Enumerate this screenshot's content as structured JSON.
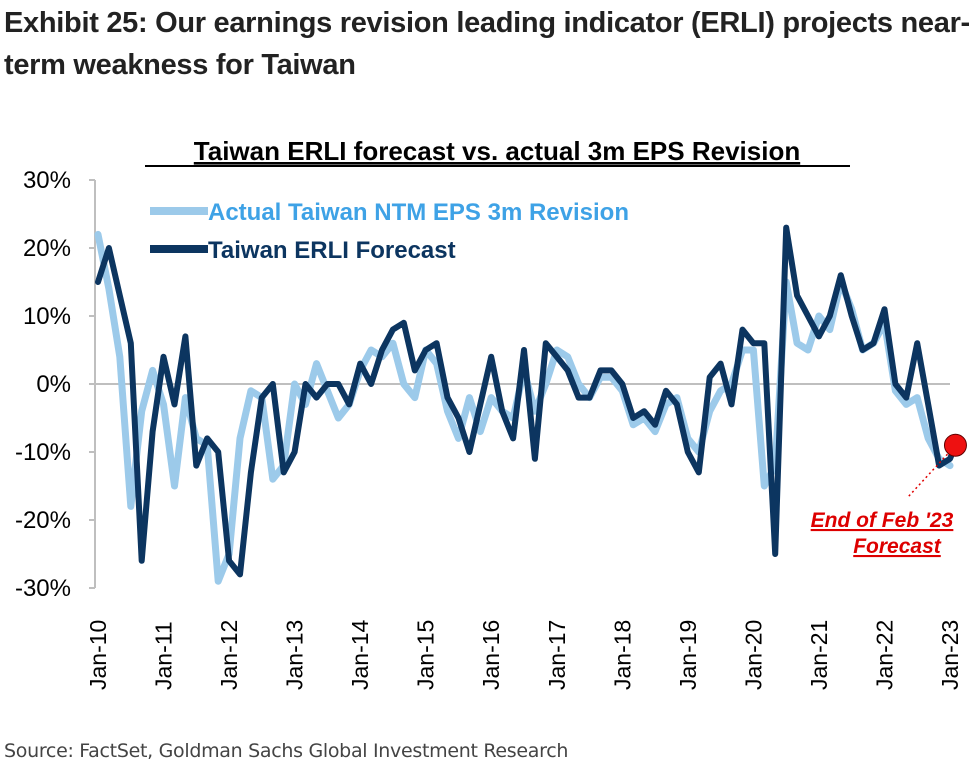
{
  "exhibit_title": "Exhibit 25: Our earnings revision leading indicator (ERLI) projects near-term weakness for Taiwan",
  "source": "Source: FactSet, Goldman Sachs Global Investment Research",
  "chart_data": {
    "type": "line",
    "title": "Taiwan ERLI forecast vs. actual 3m EPS Revision",
    "xlabel": "",
    "ylabel": "",
    "x_tick_labels": [
      "Jan-10",
      "Jan-11",
      "Jan-12",
      "Jan-13",
      "Jan-14",
      "Jan-15",
      "Jan-16",
      "Jan-17",
      "Jan-18",
      "Jan-19",
      "Jan-20",
      "Jan-21",
      "Jan-22",
      "Jan-23"
    ],
    "y_tick_labels": [
      "30%",
      "20%",
      "10%",
      "0%",
      "-10%",
      "-20%",
      "-30%"
    ],
    "ylim": [
      -30,
      30
    ],
    "y_ticks": [
      30,
      20,
      10,
      0,
      -10,
      -20,
      -30
    ],
    "x_range": [
      "Jan-10",
      "Jan-23"
    ],
    "grid": false,
    "legend_position": "top-left",
    "colors": {
      "actual": "#9ccaea",
      "forecast": "#0c3560",
      "marker": "#e00000",
      "annotation": "#dd0000",
      "axis": "#bfbfbf"
    },
    "annotation": {
      "line1": "End of Feb '23",
      "line2": "Forecast",
      "point": {
        "x": "Feb-23",
        "y": -9
      }
    },
    "series": [
      {
        "name": "Actual Taiwan NTM EPS 3m Revision",
        "x": [
          "Jan-10",
          "Mar-10",
          "May-10",
          "Jul-10",
          "Sep-10",
          "Nov-10",
          "Jan-11",
          "Mar-11",
          "May-11",
          "Jul-11",
          "Sep-11",
          "Nov-11",
          "Jan-12",
          "Mar-12",
          "May-12",
          "Jul-12",
          "Sep-12",
          "Nov-12",
          "Jan-13",
          "Mar-13",
          "May-13",
          "Jul-13",
          "Sep-13",
          "Nov-13",
          "Jan-14",
          "Mar-14",
          "May-14",
          "Jul-14",
          "Sep-14",
          "Nov-14",
          "Jan-15",
          "Mar-15",
          "May-15",
          "Jul-15",
          "Sep-15",
          "Nov-15",
          "Jan-16",
          "Mar-16",
          "May-16",
          "Jul-16",
          "Sep-16",
          "Nov-16",
          "Jan-17",
          "Mar-17",
          "May-17",
          "Jul-17",
          "Sep-17",
          "Nov-17",
          "Jan-18",
          "Mar-18",
          "May-18",
          "Jul-18",
          "Sep-18",
          "Nov-18",
          "Jan-19",
          "Mar-19",
          "May-19",
          "Jul-19",
          "Sep-19",
          "Nov-19",
          "Jan-20",
          "Mar-20",
          "May-20",
          "Jul-20",
          "Sep-20",
          "Nov-20",
          "Jan-21",
          "Mar-21",
          "May-21",
          "Jul-21",
          "Sep-21",
          "Nov-21",
          "Jan-22",
          "Mar-22",
          "May-22",
          "Jul-22",
          "Sep-22",
          "Nov-22",
          "Jan-23"
        ],
        "values": [
          22,
          14,
          4,
          -18,
          -4,
          2,
          -3,
          -15,
          -2,
          -8,
          -9,
          -29,
          -25,
          -8,
          -1,
          -2,
          -14,
          -12,
          0,
          -3,
          3,
          -1,
          -5,
          -3,
          2,
          5,
          4,
          6,
          0,
          -2,
          5,
          3,
          -4,
          -8,
          -2,
          -7,
          -2,
          -4,
          -5,
          2,
          -4,
          0,
          5,
          4,
          0,
          -2,
          1,
          1,
          -1,
          -6,
          -5,
          -7,
          -3,
          -2,
          -8,
          -10,
          -4,
          -1,
          0,
          5,
          5,
          -15,
          -12,
          15,
          6,
          5,
          10,
          8,
          15,
          11,
          5,
          6,
          9,
          -1,
          -3,
          -2,
          -8,
          -11,
          -12
        ],
        "style": "thick light line"
      },
      {
        "name": "Taiwan ERLI Forecast",
        "x": [
          "Jan-10",
          "Mar-10",
          "May-10",
          "Jul-10",
          "Sep-10",
          "Nov-10",
          "Jan-11",
          "Mar-11",
          "May-11",
          "Jul-11",
          "Sep-11",
          "Nov-11",
          "Jan-12",
          "Mar-12",
          "May-12",
          "Jul-12",
          "Sep-12",
          "Nov-12",
          "Jan-13",
          "Mar-13",
          "May-13",
          "Jul-13",
          "Sep-13",
          "Nov-13",
          "Jan-14",
          "Mar-14",
          "May-14",
          "Jul-14",
          "Sep-14",
          "Nov-14",
          "Jan-15",
          "Mar-15",
          "May-15",
          "Jul-15",
          "Sep-15",
          "Nov-15",
          "Jan-16",
          "Mar-16",
          "May-16",
          "Jul-16",
          "Sep-16",
          "Nov-16",
          "Jan-17",
          "Mar-17",
          "May-17",
          "Jul-17",
          "Sep-17",
          "Nov-17",
          "Jan-18",
          "Mar-18",
          "May-18",
          "Jul-18",
          "Sep-18",
          "Nov-18",
          "Jan-19",
          "Mar-19",
          "May-19",
          "Jul-19",
          "Sep-19",
          "Nov-19",
          "Jan-20",
          "Mar-20",
          "May-20",
          "Jul-20",
          "Sep-20",
          "Nov-20",
          "Jan-21",
          "Mar-21",
          "May-21",
          "Jul-21",
          "Sep-21",
          "Nov-21",
          "Jan-22",
          "Mar-22",
          "May-22",
          "Jul-22",
          "Sep-22",
          "Nov-22",
          "Jan-23",
          "Feb-23"
        ],
        "values": [
          15,
          20,
          13,
          6,
          -26,
          -7,
          4,
          -3,
          7,
          -12,
          -8,
          -10,
          -26,
          -28,
          -13,
          -2,
          0,
          -13,
          -10,
          0,
          -2,
          0,
          0,
          -3,
          3,
          0,
          5,
          8,
          9,
          2,
          5,
          6,
          -2,
          -5,
          -10,
          -3,
          4,
          -4,
          -8,
          5,
          -11,
          6,
          4,
          2,
          -2,
          -2,
          2,
          2,
          0,
          -5,
          -4,
          -6,
          -1,
          -3,
          -10,
          -13,
          1,
          3,
          -3,
          8,
          6,
          6,
          -25,
          23,
          13,
          10,
          7,
          10,
          16,
          10,
          5,
          6,
          11,
          0,
          -2,
          6,
          -3,
          -12,
          -11,
          -9
        ],
        "style": "thick dark line"
      }
    ]
  }
}
